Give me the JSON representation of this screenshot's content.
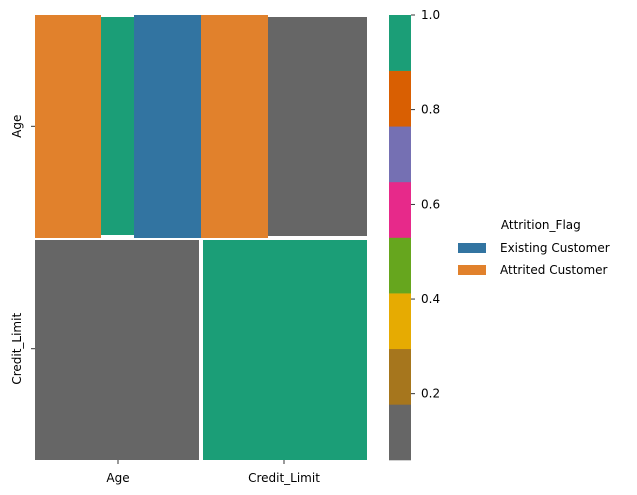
{
  "chart_data": {
    "type": "heatmap",
    "row_labels": [
      "Age",
      "Credit_Limit"
    ],
    "col_labels": [
      "Age",
      "Credit_Limit"
    ],
    "cells": [
      {
        "row": "Age",
        "col": "Age",
        "tiles": [
          {
            "value": 1.0,
            "category": "Attrited Customer",
            "color": "#e1812c"
          },
          {
            "value": 1.0,
            "color": "#1b9e77"
          },
          {
            "value": 1.0,
            "category": "Existing Customer",
            "color": "#3274a1"
          }
        ]
      },
      {
        "row": "Age",
        "col": "Credit_Limit",
        "tiles": [
          {
            "value": 1.0,
            "category": "Attrited Customer",
            "color": "#e1812c"
          },
          {
            "value": 0.0,
            "color": "#666666"
          }
        ]
      },
      {
        "row": "Credit_Limit",
        "col": "Age",
        "value": 0.0,
        "color": "#666666"
      },
      {
        "row": "Credit_Limit",
        "col": "Credit_Limit",
        "value": 1.0,
        "color": "#1b9e77"
      }
    ],
    "colorbar": {
      "range": [
        0.06,
        1.0
      ],
      "colors": [
        "#666666",
        "#a6761d",
        "#e6ab02",
        "#66a61e",
        "#e7298a",
        "#7570b3",
        "#d95f02",
        "#1b9e77"
      ],
      "ticks": [
        "0.2",
        "0.4",
        "0.6",
        "0.8",
        "1.0"
      ],
      "tick_values": [
        0.2,
        0.4,
        0.6,
        0.8,
        1.0
      ]
    },
    "legend": {
      "title": "Attrition_Flag",
      "placement": "right",
      "entries": [
        {
          "label": "Existing Customer",
          "color": "#3274a1"
        },
        {
          "label": "Attrited Customer",
          "color": "#e1812c"
        }
      ]
    }
  }
}
